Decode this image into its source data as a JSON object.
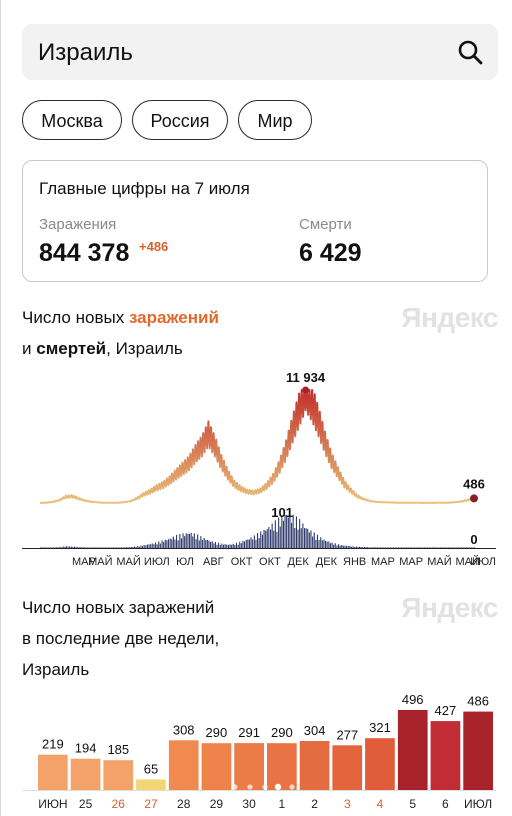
{
  "search": {
    "query": "Израиль"
  },
  "chips": [
    {
      "label": "Москва"
    },
    {
      "label": "Россия"
    },
    {
      "label": "Мир"
    }
  ],
  "summary": {
    "title": "Главные цифры на 7 июля",
    "infections_label": "Заражения",
    "infections_value": "844 378",
    "infections_delta": "+486",
    "deaths_label": "Смерти",
    "deaths_value": "6 429"
  },
  "trend": {
    "title_part1": "Число новых ",
    "title_part2": "заражений",
    "title_part3": "и ",
    "title_part4": "смертей",
    "title_part5": ", Израиль",
    "watermark": "Яндекс"
  },
  "bars": {
    "title_line1": "Число новых заражений",
    "title_line2": "в последние две недели,",
    "title_line3": "Израиль",
    "watermark": "Яндекс"
  },
  "colors": {
    "accent": "#e06a2c",
    "infections_line_low": "#e8c27a",
    "infections_line_high": "#c2302b",
    "deaths_bars": "#2d3a6b",
    "bar_low": "#f0a867",
    "bar_high": "#a8222a"
  },
  "chart_data": [
    {
      "type": "line",
      "title": "Число новых заражений и смертей, Израиль",
      "x_tick_labels": [
        "МАР",
        "МАЙ",
        "МАЙ",
        "ИЮЛ",
        "ЮЛ",
        "АВГ",
        "ОКТ",
        "ОКТ",
        "ДЕК",
        "ДЕК",
        "ЯНВ",
        "МАР",
        "МАР",
        "МАЙ",
        "МАЙ",
        "ИЮЛ"
      ],
      "series": [
        {
          "name": "заражений",
          "values": [
            0,
            40,
            120,
            300,
            650,
            700,
            450,
            250,
            120,
            60,
            30,
            25,
            35,
            80,
            200,
            500,
            900,
            1200,
            1600,
            1900,
            2400,
            3000,
            3600,
            4200,
            5200,
            6000,
            7300,
            6000,
            4300,
            3000,
            2000,
            1500,
            1200,
            1100,
            1300,
            1800,
            2600,
            3900,
            5600,
            7800,
            9800,
            11934,
            10500,
            8600,
            6400,
            4500,
            3200,
            2000,
            1300,
            700,
            400,
            200,
            120,
            80,
            60,
            40,
            30,
            25,
            20,
            18,
            15,
            18,
            25,
            40,
            80,
            150,
            300,
            486
          ],
          "annotations": [
            {
              "label": "11 934",
              "value": 11934
            },
            {
              "label": "486",
              "value": 486
            }
          ]
        },
        {
          "name": "смертей",
          "values": [
            0,
            1,
            2,
            3,
            5,
            4,
            3,
            2,
            1,
            1,
            1,
            1,
            1,
            2,
            3,
            5,
            8,
            12,
            16,
            22,
            28,
            35,
            40,
            45,
            38,
            30,
            22,
            16,
            12,
            10,
            12,
            18,
            26,
            34,
            45,
            58,
            70,
            85,
            101,
            90,
            78,
            60,
            45,
            32,
            22,
            15,
            10,
            7,
            5,
            4,
            3,
            2,
            2,
            1,
            1,
            1,
            1,
            1,
            0,
            0,
            0,
            0,
            0,
            0,
            0,
            0,
            0,
            0
          ],
          "annotations": [
            {
              "label": "101",
              "value": 101
            },
            {
              "label": "0",
              "value": 0
            }
          ]
        }
      ]
    },
    {
      "type": "bar",
      "title": "Число новых заражений в последние две недели, Израиль",
      "categories": [
        "ИЮН",
        "25",
        "26",
        "27",
        "28",
        "29",
        "30",
        "1",
        "2",
        "3",
        "4",
        "5",
        "6",
        "ИЮЛ"
      ],
      "values": [
        219,
        194,
        185,
        65,
        308,
        290,
        291,
        290,
        304,
        277,
        321,
        496,
        427,
        486
      ],
      "weekend_categories": [
        "26",
        "27",
        "3",
        "4"
      ]
    }
  ]
}
